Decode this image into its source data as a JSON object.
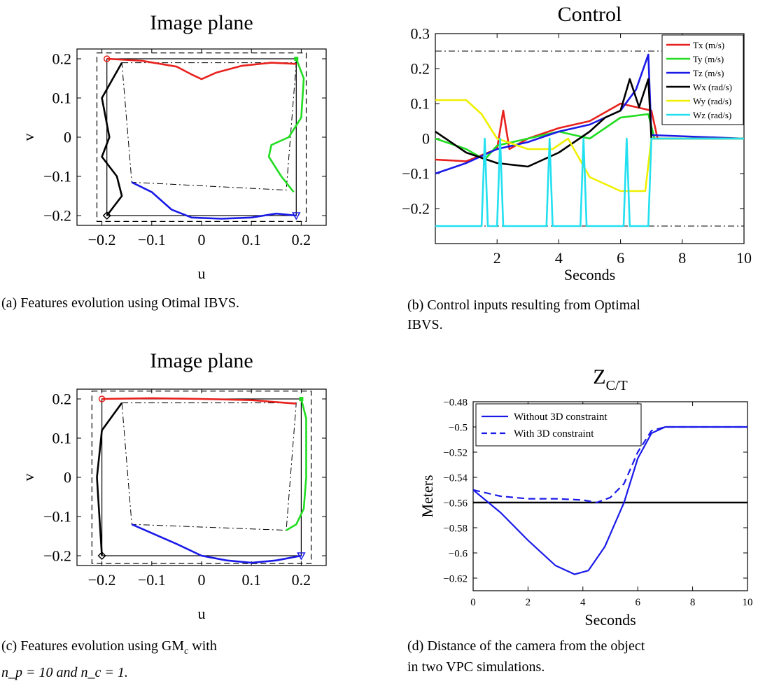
{
  "captions": {
    "a": "(a) Features evolution using Otimal IBVS.",
    "b1": "(b) Control inputs resulting from Optimal",
    "b2": "IBVS.",
    "c1_pre": "(c) Features evolution using GM",
    "c1_sub": "c",
    "c1_post": " with",
    "c2": "n_p = 10 and n_c = 1.",
    "d1": "(d) Distance of the camera from the object",
    "d2": "in two VPC simulations."
  },
  "chart_data": [
    {
      "id": "a",
      "type": "line",
      "title": "Image plane",
      "xlabel": "u",
      "ylabel": "v",
      "xlim": [
        -0.25,
        0.25
      ],
      "ylim": [
        -0.225,
        0.225
      ],
      "xticks": [
        -0.2,
        -0.1,
        0,
        0.1,
        0.2
      ],
      "xtick_labels": [
        "−0.2",
        "−0.1",
        "0",
        "0.1",
        "0.2"
      ],
      "yticks": [
        -0.2,
        -0.1,
        0,
        0.1,
        0.2
      ],
      "ytick_labels": [
        "−0.2",
        "−0.1",
        "0",
        "0.1",
        "0.2"
      ],
      "desired_square": [
        [
          -0.19,
          -0.2
        ],
        [
          0.19,
          0.2
        ]
      ],
      "bounds_dashed": [
        [
          -0.21,
          -0.215
        ],
        [
          0.21,
          0.215
        ]
      ],
      "initial_quad": [
        [
          -0.16,
          0.19
        ],
        [
          0.19,
          0.19
        ],
        [
          0.17,
          -0.135
        ],
        [
          -0.14,
          -0.115
        ]
      ],
      "series": [
        {
          "color": "#e8211d",
          "points": [
            [
              -0.19,
              0.2
            ],
            [
              -0.12,
              0.195
            ],
            [
              -0.05,
              0.18
            ],
            [
              -0.02,
              0.16
            ],
            [
              0,
              0.148
            ],
            [
              0.03,
              0.165
            ],
            [
              0.08,
              0.182
            ],
            [
              0.14,
              0.19
            ],
            [
              0.19,
              0.187
            ]
          ]
        },
        {
          "color": "#22dd22",
          "points": [
            [
              0.19,
              0.2
            ],
            [
              0.205,
              0.15
            ],
            [
              0.2,
              0.05
            ],
            [
              0.175,
              0.0
            ],
            [
              0.14,
              -0.02
            ],
            [
              0.135,
              -0.05
            ],
            [
              0.16,
              -0.1
            ],
            [
              0.185,
              -0.14
            ]
          ]
        },
        {
          "color": "#1a1ae8",
          "points": [
            [
              -0.14,
              -0.115
            ],
            [
              -0.1,
              -0.14
            ],
            [
              -0.06,
              -0.185
            ],
            [
              -0.02,
              -0.205
            ],
            [
              0.04,
              -0.208
            ],
            [
              0.1,
              -0.205
            ],
            [
              0.15,
              -0.195
            ],
            [
              0.19,
              -0.2
            ]
          ]
        },
        {
          "color": "#000000",
          "points": [
            [
              -0.16,
              0.19
            ],
            [
              -0.2,
              0.1
            ],
            [
              -0.185,
              0.0
            ],
            [
              -0.2,
              -0.05
            ],
            [
              -0.17,
              -0.1
            ],
            [
              -0.16,
              -0.15
            ],
            [
              -0.19,
              -0.2
            ]
          ]
        }
      ]
    },
    {
      "id": "b",
      "type": "line",
      "title": "Control",
      "xlabel": "Seconds",
      "ylabel": "",
      "xlim": [
        0,
        10
      ],
      "ylim": [
        -0.3,
        0.3
      ],
      "xticks": [
        2,
        4,
        6,
        8,
        10
      ],
      "xtick_labels": [
        "2",
        "4",
        "6",
        "8",
        "10"
      ],
      "yticks": [
        -0.2,
        -0.1,
        0,
        0.1,
        0.2,
        0.3
      ],
      "ytick_labels": [
        "−0.2",
        "−0.1",
        "0",
        "0.1",
        "0.2",
        "0.3"
      ],
      "limit_lines": [
        0.25,
        -0.25
      ],
      "legend": [
        {
          "name": "Tx (m/s)",
          "color": "#e8211d"
        },
        {
          "name": "Ty (m/s)",
          "color": "#22dd22"
        },
        {
          "name": "Tz (m/s)",
          "color": "#1a1ae8"
        },
        {
          "name": "Wx (rad/s)",
          "color": "#000000"
        },
        {
          "name": "Wy (rad/s)",
          "color": "#f0f000"
        },
        {
          "name": "Wz (rad/s)",
          "color": "#22e0f0"
        }
      ],
      "series": [
        {
          "color": "#e8211d",
          "points": [
            [
              0,
              -0.06
            ],
            [
              1,
              -0.065
            ],
            [
              2,
              -0.03
            ],
            [
              2.2,
              0.08
            ],
            [
              2.4,
              -0.03
            ],
            [
              3,
              0
            ],
            [
              4,
              0.03
            ],
            [
              5,
              0.05
            ],
            [
              6,
              0.1
            ],
            [
              7,
              0.08
            ],
            [
              7.2,
              0
            ],
            [
              10,
              0
            ]
          ]
        },
        {
          "color": "#22dd22",
          "points": [
            [
              0,
              0
            ],
            [
              1,
              -0.03
            ],
            [
              1.6,
              -0.06
            ],
            [
              2,
              -0.02
            ],
            [
              3,
              0.0
            ],
            [
              4,
              0.02
            ],
            [
              5,
              0.0
            ],
            [
              6,
              0.06
            ],
            [
              6.9,
              0.07
            ],
            [
              7.1,
              0
            ],
            [
              10,
              0
            ]
          ]
        },
        {
          "color": "#1a1ae8",
          "points": [
            [
              0,
              -0.1
            ],
            [
              1,
              -0.07
            ],
            [
              2,
              -0.03
            ],
            [
              3,
              -0.01
            ],
            [
              4,
              0.02
            ],
            [
              5,
              0.04
            ],
            [
              6,
              0.08
            ],
            [
              6.5,
              0.14
            ],
            [
              6.9,
              0.24
            ],
            [
              7.0,
              0.01
            ],
            [
              10,
              0
            ]
          ]
        },
        {
          "color": "#000000",
          "points": [
            [
              0,
              0.02
            ],
            [
              1,
              -0.04
            ],
            [
              2,
              -0.07
            ],
            [
              3,
              -0.08
            ],
            [
              4,
              -0.04
            ],
            [
              5,
              0.02
            ],
            [
              5.5,
              0.06
            ],
            [
              6,
              0.08
            ],
            [
              6.3,
              0.17
            ],
            [
              6.6,
              0.09
            ],
            [
              6.9,
              0.17
            ],
            [
              7.0,
              0.0
            ],
            [
              10,
              0
            ]
          ]
        },
        {
          "color": "#f0f000",
          "points": [
            [
              0,
              0.11
            ],
            [
              1,
              0.11
            ],
            [
              1.5,
              0.07
            ],
            [
              2,
              0.0
            ],
            [
              3,
              -0.03
            ],
            [
              3.8,
              -0.03
            ],
            [
              4.3,
              0.0
            ],
            [
              5,
              -0.11
            ],
            [
              6,
              -0.15
            ],
            [
              6.8,
              -0.15
            ],
            [
              7.0,
              0
            ],
            [
              10,
              0
            ]
          ]
        },
        {
          "color": "#22e0f0",
          "points": [
            [
              0,
              -0.25
            ],
            [
              1.5,
              -0.25
            ],
            [
              1.6,
              0.0
            ],
            [
              1.7,
              -0.25
            ],
            [
              2.0,
              -0.25
            ],
            [
              2.1,
              0.0
            ],
            [
              2.2,
              -0.25
            ],
            [
              3.6,
              -0.25
            ],
            [
              3.7,
              0.0
            ],
            [
              3.8,
              -0.25
            ],
            [
              4.7,
              -0.25
            ],
            [
              4.8,
              0.0
            ],
            [
              4.9,
              -0.25
            ],
            [
              6.1,
              -0.25
            ],
            [
              6.2,
              0.0
            ],
            [
              6.3,
              -0.25
            ],
            [
              6.9,
              -0.25
            ],
            [
              7.0,
              0.0
            ],
            [
              10,
              0.0
            ]
          ]
        }
      ]
    },
    {
      "id": "c",
      "type": "line",
      "title": "Image plane",
      "xlabel": "u",
      "ylabel": "v",
      "xlim": [
        -0.25,
        0.25
      ],
      "ylim": [
        -0.225,
        0.225
      ],
      "xticks": [
        -0.2,
        -0.1,
        0,
        0.1,
        0.2
      ],
      "xtick_labels": [
        "−0.2",
        "−0.1",
        "0",
        "0.1",
        "0.2"
      ],
      "yticks": [
        -0.2,
        -0.1,
        0,
        0.1,
        0.2
      ],
      "ytick_labels": [
        "−0.2",
        "−0.1",
        "0",
        "0.1",
        "0.2"
      ],
      "desired_square": [
        [
          -0.2,
          -0.2
        ],
        [
          0.2,
          0.2
        ]
      ],
      "bounds_dashed": [
        [
          -0.22,
          -0.22
        ],
        [
          0.22,
          0.22
        ]
      ],
      "initial_quad": [
        [
          -0.16,
          0.19
        ],
        [
          0.19,
          0.19
        ],
        [
          0.17,
          -0.135
        ],
        [
          -0.14,
          -0.12
        ]
      ],
      "series": [
        {
          "color": "#e8211d",
          "points": [
            [
              -0.2,
              0.2
            ],
            [
              -0.1,
              0.202
            ],
            [
              0,
              0.2
            ],
            [
              0.1,
              0.197
            ],
            [
              0.19,
              0.188
            ]
          ]
        },
        {
          "color": "#22dd22",
          "points": [
            [
              0.2,
              0.2
            ],
            [
              0.21,
              0.15
            ],
            [
              0.21,
              0.0
            ],
            [
              0.205,
              -0.08
            ],
            [
              0.19,
              -0.12
            ],
            [
              0.17,
              -0.135
            ]
          ]
        },
        {
          "color": "#1a1ae8",
          "points": [
            [
              -0.14,
              -0.12
            ],
            [
              -0.05,
              -0.17
            ],
            [
              0.0,
              -0.2
            ],
            [
              0.05,
              -0.212
            ],
            [
              0.1,
              -0.218
            ],
            [
              0.15,
              -0.212
            ],
            [
              0.2,
              -0.2
            ]
          ]
        },
        {
          "color": "#000000",
          "points": [
            [
              -0.16,
              0.19
            ],
            [
              -0.2,
              0.12
            ],
            [
              -0.21,
              0.0
            ],
            [
              -0.205,
              -0.1
            ],
            [
              -0.2,
              -0.2
            ]
          ]
        }
      ]
    },
    {
      "id": "d",
      "type": "line",
      "title_main": "Z",
      "title_sub": "C/T",
      "xlabel": "Seconds",
      "ylabel": "Meters",
      "xlim": [
        0,
        10
      ],
      "ylim": [
        -0.63,
        -0.48
      ],
      "xticks": [
        0,
        2,
        4,
        6,
        8,
        10
      ],
      "xtick_labels": [
        "0",
        "2",
        "4",
        "6",
        "8",
        "10"
      ],
      "yticks": [
        -0.48,
        -0.5,
        -0.52,
        -0.54,
        -0.56,
        -0.58,
        -0.6,
        -0.62
      ],
      "ytick_labels": [
        "−0.48",
        "−0.5",
        "−0.52",
        "−0.54",
        "−0.56",
        "−0.58",
        "−0.6",
        "−0.62"
      ],
      "constraint_line": -0.56,
      "legend": [
        {
          "name": "Without 3D constraint",
          "color": "#1a1ae8",
          "dash": false
        },
        {
          "name": "With 3D constraint",
          "color": "#1a1ae8",
          "dash": true
        }
      ],
      "series": [
        {
          "name": "Without 3D constraint",
          "color": "#1a1ae8",
          "dash": false,
          "points": [
            [
              0,
              -0.55
            ],
            [
              1,
              -0.568
            ],
            [
              2,
              -0.59
            ],
            [
              3,
              -0.61
            ],
            [
              3.7,
              -0.617
            ],
            [
              4.2,
              -0.614
            ],
            [
              4.8,
              -0.595
            ],
            [
              5.5,
              -0.56
            ],
            [
              6,
              -0.525
            ],
            [
              6.5,
              -0.505
            ],
            [
              7,
              -0.5
            ],
            [
              10,
              -0.5
            ]
          ]
        },
        {
          "name": "With 3D constraint",
          "color": "#1a1ae8",
          "dash": true,
          "points": [
            [
              0,
              -0.55
            ],
            [
              1,
              -0.555
            ],
            [
              2,
              -0.557
            ],
            [
              3,
              -0.557
            ],
            [
              4,
              -0.558
            ],
            [
              4.5,
              -0.56
            ],
            [
              5,
              -0.556
            ],
            [
              5.5,
              -0.545
            ],
            [
              6,
              -0.52
            ],
            [
              6.5,
              -0.503
            ],
            [
              7,
              -0.5
            ],
            [
              10,
              -0.5
            ]
          ]
        }
      ]
    }
  ]
}
